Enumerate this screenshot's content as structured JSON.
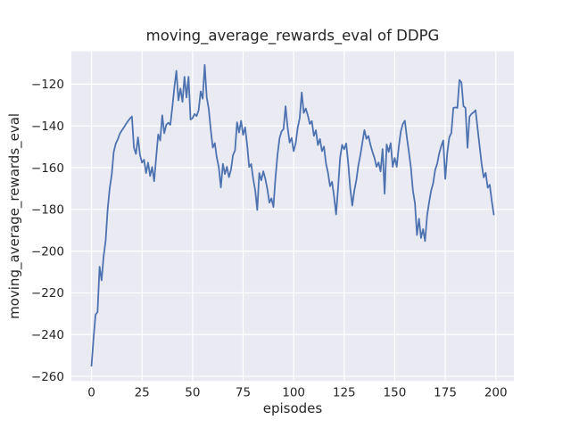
{
  "chart_data": {
    "type": "line",
    "title": "moving_average_rewards_eval of DDPG",
    "xlabel": "episodes",
    "ylabel": "moving_average_rewards_eval",
    "legend": "none",
    "grid": "on",
    "style": "seaborn-darkgrid",
    "axes_bg_color": "#eaeaf2",
    "grid_color": "#ffffff",
    "line_color": "#4c72b0",
    "text_color": "#262626",
    "xlim": [
      -9.95,
      208.95
    ],
    "ylim": [
      -262.2,
      -104.3
    ],
    "xticks": [
      0,
      25,
      50,
      75,
      100,
      125,
      150,
      175,
      200
    ],
    "yticks": [
      -260,
      -240,
      -220,
      -200,
      -180,
      -160,
      -140,
      -120
    ],
    "x_start": 0,
    "x_step": 1,
    "values": [
      -255.0,
      -242.0,
      -230.5,
      -229.2,
      -207.5,
      -214.0,
      -202.5,
      -195.0,
      -180.0,
      -170.0,
      -163.5,
      -152.5,
      -148.5,
      -146.5,
      -143.8,
      -142.2,
      -140.8,
      -139.2,
      -137.8,
      -136.5,
      -135.5,
      -150.5,
      -153.4,
      -145.5,
      -154.0,
      -157.6,
      -156.2,
      -162.6,
      -157.6,
      -164.0,
      -159.7,
      -166.5,
      -155.0,
      -144.1,
      -147.0,
      -134.9,
      -143.5,
      -139.5,
      -138.5,
      -139.5,
      -131.0,
      -121.5,
      -113.6,
      -127.8,
      -122.1,
      -128.5,
      -116.5,
      -126.4,
      -116.5,
      -137.0,
      -136.3,
      -134.3,
      -135.3,
      -132.5,
      -123.5,
      -127.0,
      -110.8,
      -126.3,
      -131.9,
      -141.9,
      -150.4,
      -148.3,
      -155.3,
      -160.0,
      -169.5,
      -158.2,
      -163.1,
      -159.6,
      -164.6,
      -161.0,
      -154.0,
      -151.8,
      -138.3,
      -143.2,
      -137.6,
      -144.3,
      -140.7,
      -149.1,
      -159.7,
      -158.3,
      -165.4,
      -171.0,
      -180.3,
      -162.6,
      -166.1,
      -161.8,
      -165.4,
      -170.4,
      -176.8,
      -174.7,
      -178.9,
      -165.0,
      -154.0,
      -146.0,
      -142.7,
      -141.5,
      -130.6,
      -140.6,
      -148.0,
      -145.8,
      -152.1,
      -148.4,
      -141.0,
      -136.3,
      -124.0,
      -133.8,
      -131.7,
      -134.9,
      -139.1,
      -137.7,
      -144.8,
      -142.1,
      -149.2,
      -146.3,
      -152.1,
      -149.9,
      -158.0,
      -162.5,
      -168.9,
      -166.8,
      -173.9,
      -182.4,
      -169.6,
      -155.0,
      -149.1,
      -151.2,
      -148.4,
      -158.0,
      -170.0,
      -178.2,
      -171.1,
      -166.1,
      -159.0,
      -154.0,
      -148.0,
      -142.0,
      -146.2,
      -144.8,
      -149.1,
      -152.5,
      -155.4,
      -159.6,
      -157.5,
      -161.8,
      -151.1,
      -172.5,
      -148.9,
      -152.5,
      -148.3,
      -159.6,
      -155.4,
      -159.6,
      -150.0,
      -142.7,
      -139.1,
      -137.5,
      -145.4,
      -152.5,
      -160.0,
      -171.0,
      -177.0,
      -192.3,
      -184.5,
      -193.7,
      -189.5,
      -195.2,
      -183.1,
      -176.7,
      -171.1,
      -167.5,
      -161.1,
      -158.2,
      -153.2,
      -149.7,
      -147.0,
      -165.4,
      -153.0,
      -145.5,
      -143.4,
      -131.4,
      -131.1,
      -131.4,
      -118.0,
      -119.2,
      -130.5,
      -131.4,
      -150.5,
      -135.6,
      -134.2,
      -133.5,
      -132.5,
      -141.3,
      -149.8,
      -158.3,
      -164.7,
      -162.5,
      -169.6,
      -168.2,
      -176.0,
      -182.5
    ]
  }
}
